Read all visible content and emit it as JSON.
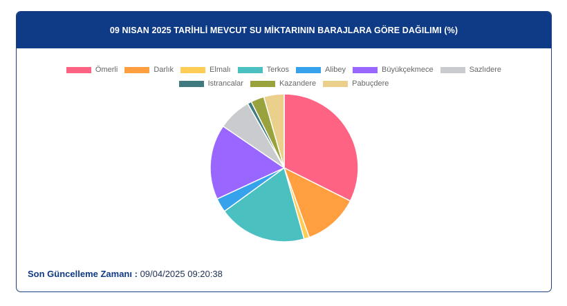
{
  "chart_data": {
    "type": "pie",
    "title": "09 NISAN 2025 TARİHLİ MEVCUT SU MİKTARININ BARAJLARA GÖRE DAĞILIMI (%)",
    "legend_position": "top",
    "categories": [
      "Ömerli",
      "Darlık",
      "Elmalı",
      "Terkos",
      "Alibey",
      "Büyükçekmece",
      "Sazlıdere",
      "Istrancalar",
      "Kazandere",
      "Pabuçdere"
    ],
    "values": [
      33.5,
      12.5,
      1.2,
      20.0,
      3.2,
      17.0,
      7.5,
      0.9,
      3.0,
      4.6
    ],
    "colors": [
      "#ff6384",
      "#ff9f40",
      "#ffcd56",
      "#4bc0c0",
      "#36a2eb",
      "#9966ff",
      "#c9cbcf",
      "#3e7a7e",
      "#9aa23e",
      "#ead08a"
    ]
  },
  "footer": {
    "label": "Son Güncelleme Zamanı :",
    "value": "09/04/2025 09:20:38"
  }
}
